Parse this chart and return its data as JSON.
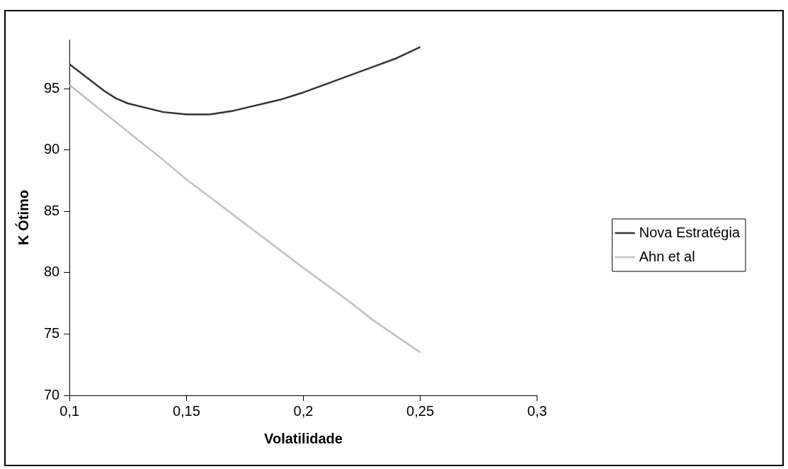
{
  "chart_data": {
    "type": "line",
    "xlabel": "Volatilidade",
    "ylabel": "K Ótimo",
    "xlim": [
      0.1,
      0.3
    ],
    "xticks": [
      {
        "value": 0.1,
        "label": "0,1"
      },
      {
        "value": 0.15,
        "label": "0,15"
      },
      {
        "value": 0.2,
        "label": "0,2"
      },
      {
        "value": 0.25,
        "label": "0,25"
      },
      {
        "value": 0.3,
        "label": "0,3"
      }
    ],
    "ylim": [
      70,
      99
    ],
    "yticks": [
      70,
      75,
      80,
      85,
      90,
      95
    ],
    "grid": false,
    "legend": "right",
    "marker": "none",
    "line_style": "solid",
    "series": [
      {
        "name": "Nova Estratégia",
        "color": "#333333",
        "x": [
          0.1,
          0.115,
          0.12,
          0.125,
          0.14,
          0.15,
          0.16,
          0.17,
          0.19,
          0.2,
          0.21,
          0.23,
          0.24,
          0.25
        ],
        "values": [
          97.0,
          94.8,
          94.2,
          93.8,
          93.1,
          92.9,
          92.9,
          93.2,
          94.1,
          94.7,
          95.4,
          96.8,
          97.5,
          98.4
        ]
      },
      {
        "name": "Ahn et al",
        "color": "#c0c0c0",
        "x": [
          0.1,
          0.14,
          0.15,
          0.2,
          0.22,
          0.23,
          0.25
        ],
        "values": [
          95.3,
          89.2,
          87.6,
          80.4,
          77.6,
          76.1,
          73.5
        ]
      }
    ]
  }
}
